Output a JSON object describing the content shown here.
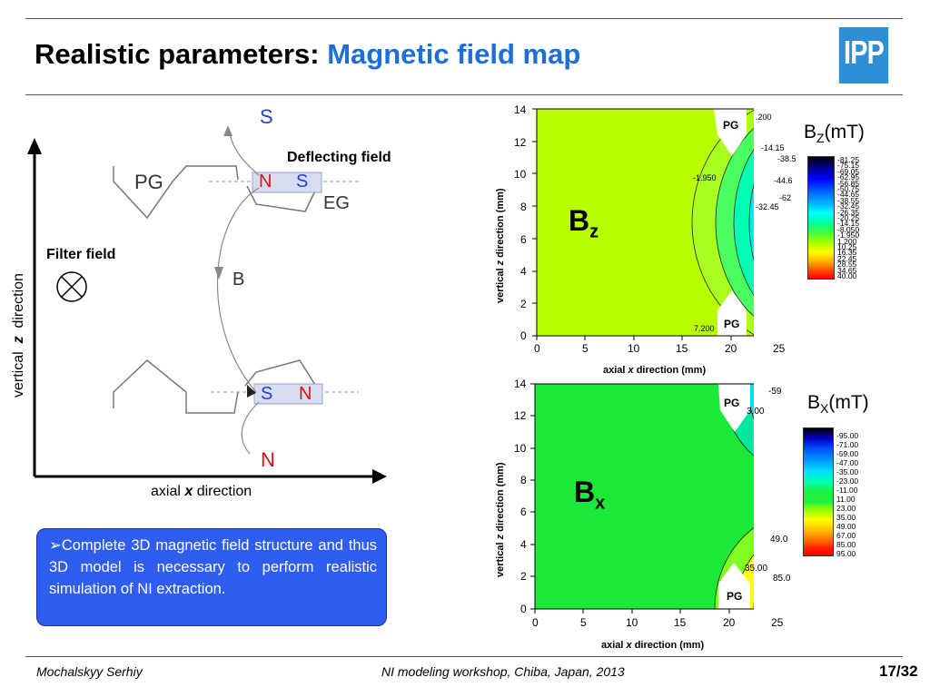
{
  "header": {
    "title_plain": "Realistic parameters: ",
    "title_accent": "Magnetic field map",
    "logo_text": "IPP",
    "accent_color": "#1a6fd8"
  },
  "schematic": {
    "top_pole": "S",
    "deflecting_field": "Deflecting field",
    "pg_label": "PG",
    "eg_label": "EG",
    "magnet1_n": "N",
    "magnet1_s": "S",
    "filter_field": "Filter field",
    "b_label": "B",
    "magnet2_s": "S",
    "magnet2_n": "N",
    "bottom_pole": "N",
    "vertical_label_a": "vertical",
    "vertical_label_z": "z",
    "vertical_label_b": "direction",
    "axial_label_a": "axial",
    "axial_label_x": "x",
    "axial_label_b": "direction"
  },
  "note": {
    "bullet": "➢",
    "text": "Complete 3D magnetic field structure and thus 3D model is necessary to perform realistic simulation of NI extraction."
  },
  "chart_data": [
    {
      "type": "heatmap",
      "panel_label": "Bz",
      "colorbar_title": "Bz(mT)",
      "xlabel_a": "axial ",
      "xlabel_x": "x",
      "xlabel_b": " direction (mm)",
      "ylabel_a": "vertical ",
      "ylabel_z": "z",
      "ylabel_b": " direction (mm)",
      "xlim": [
        0,
        27
      ],
      "ylim": [
        0,
        14
      ],
      "x_ticks": [
        "0",
        "5",
        "10",
        "15",
        "20",
        "25"
      ],
      "y_ticks": [
        "0",
        "2",
        "4",
        "6",
        "8",
        "10",
        "12",
        "14"
      ],
      "pg_marks": [
        "PG",
        "PG"
      ],
      "contour_labels": [
        "-1.950",
        "-14.15",
        "-32.45",
        "-38.5",
        "-44.6",
        "-62",
        "7.200",
        ".200"
      ],
      "colorbar_levels": [
        "-81.25",
        "-75.15",
        "-69.05",
        "-62.95",
        "-56.85",
        "-50.75",
        "-44.65",
        "-38.55",
        "-32.45",
        "-26.35",
        "-20.25",
        "-14.15",
        "-8.050",
        "-1.950",
        "1.200",
        "10.25",
        "16.35",
        "22.45",
        "28.55",
        "34.65",
        "40.00"
      ]
    },
    {
      "type": "heatmap",
      "panel_label": "Bx",
      "colorbar_title": "Bx(mT)",
      "xlabel_a": "axial ",
      "xlabel_x": "x",
      "xlabel_b": " direction (mm)",
      "ylabel_a": "vertical ",
      "ylabel_z": "z",
      "ylabel_b": " direction (mm)",
      "xlim": [
        0,
        27
      ],
      "ylim": [
        0,
        14
      ],
      "x_ticks": [
        "0",
        "5",
        "10",
        "15",
        "20",
        "25"
      ],
      "y_ticks": [
        "0",
        "2",
        "4",
        "6",
        "8",
        "10",
        "12",
        "14"
      ],
      "pg_marks": [
        "PG",
        "PG"
      ],
      "contour_labels": [
        "-59",
        "3.00",
        "49.0",
        "35.00",
        "85.0"
      ],
      "colorbar_levels": [
        "-95.00",
        "-71.00",
        "-59.00",
        "-47.00",
        "-35.00",
        "-23.00",
        "-11.00",
        "11.00",
        "23.00",
        "35.00",
        "49.00",
        "67.00",
        "85.00",
        "95.00"
      ]
    }
  ],
  "footer": {
    "author": "Mochalskyy Serhiy",
    "event": "NI modeling workshop,  Chiba, Japan, 2013",
    "page": "17/32"
  }
}
